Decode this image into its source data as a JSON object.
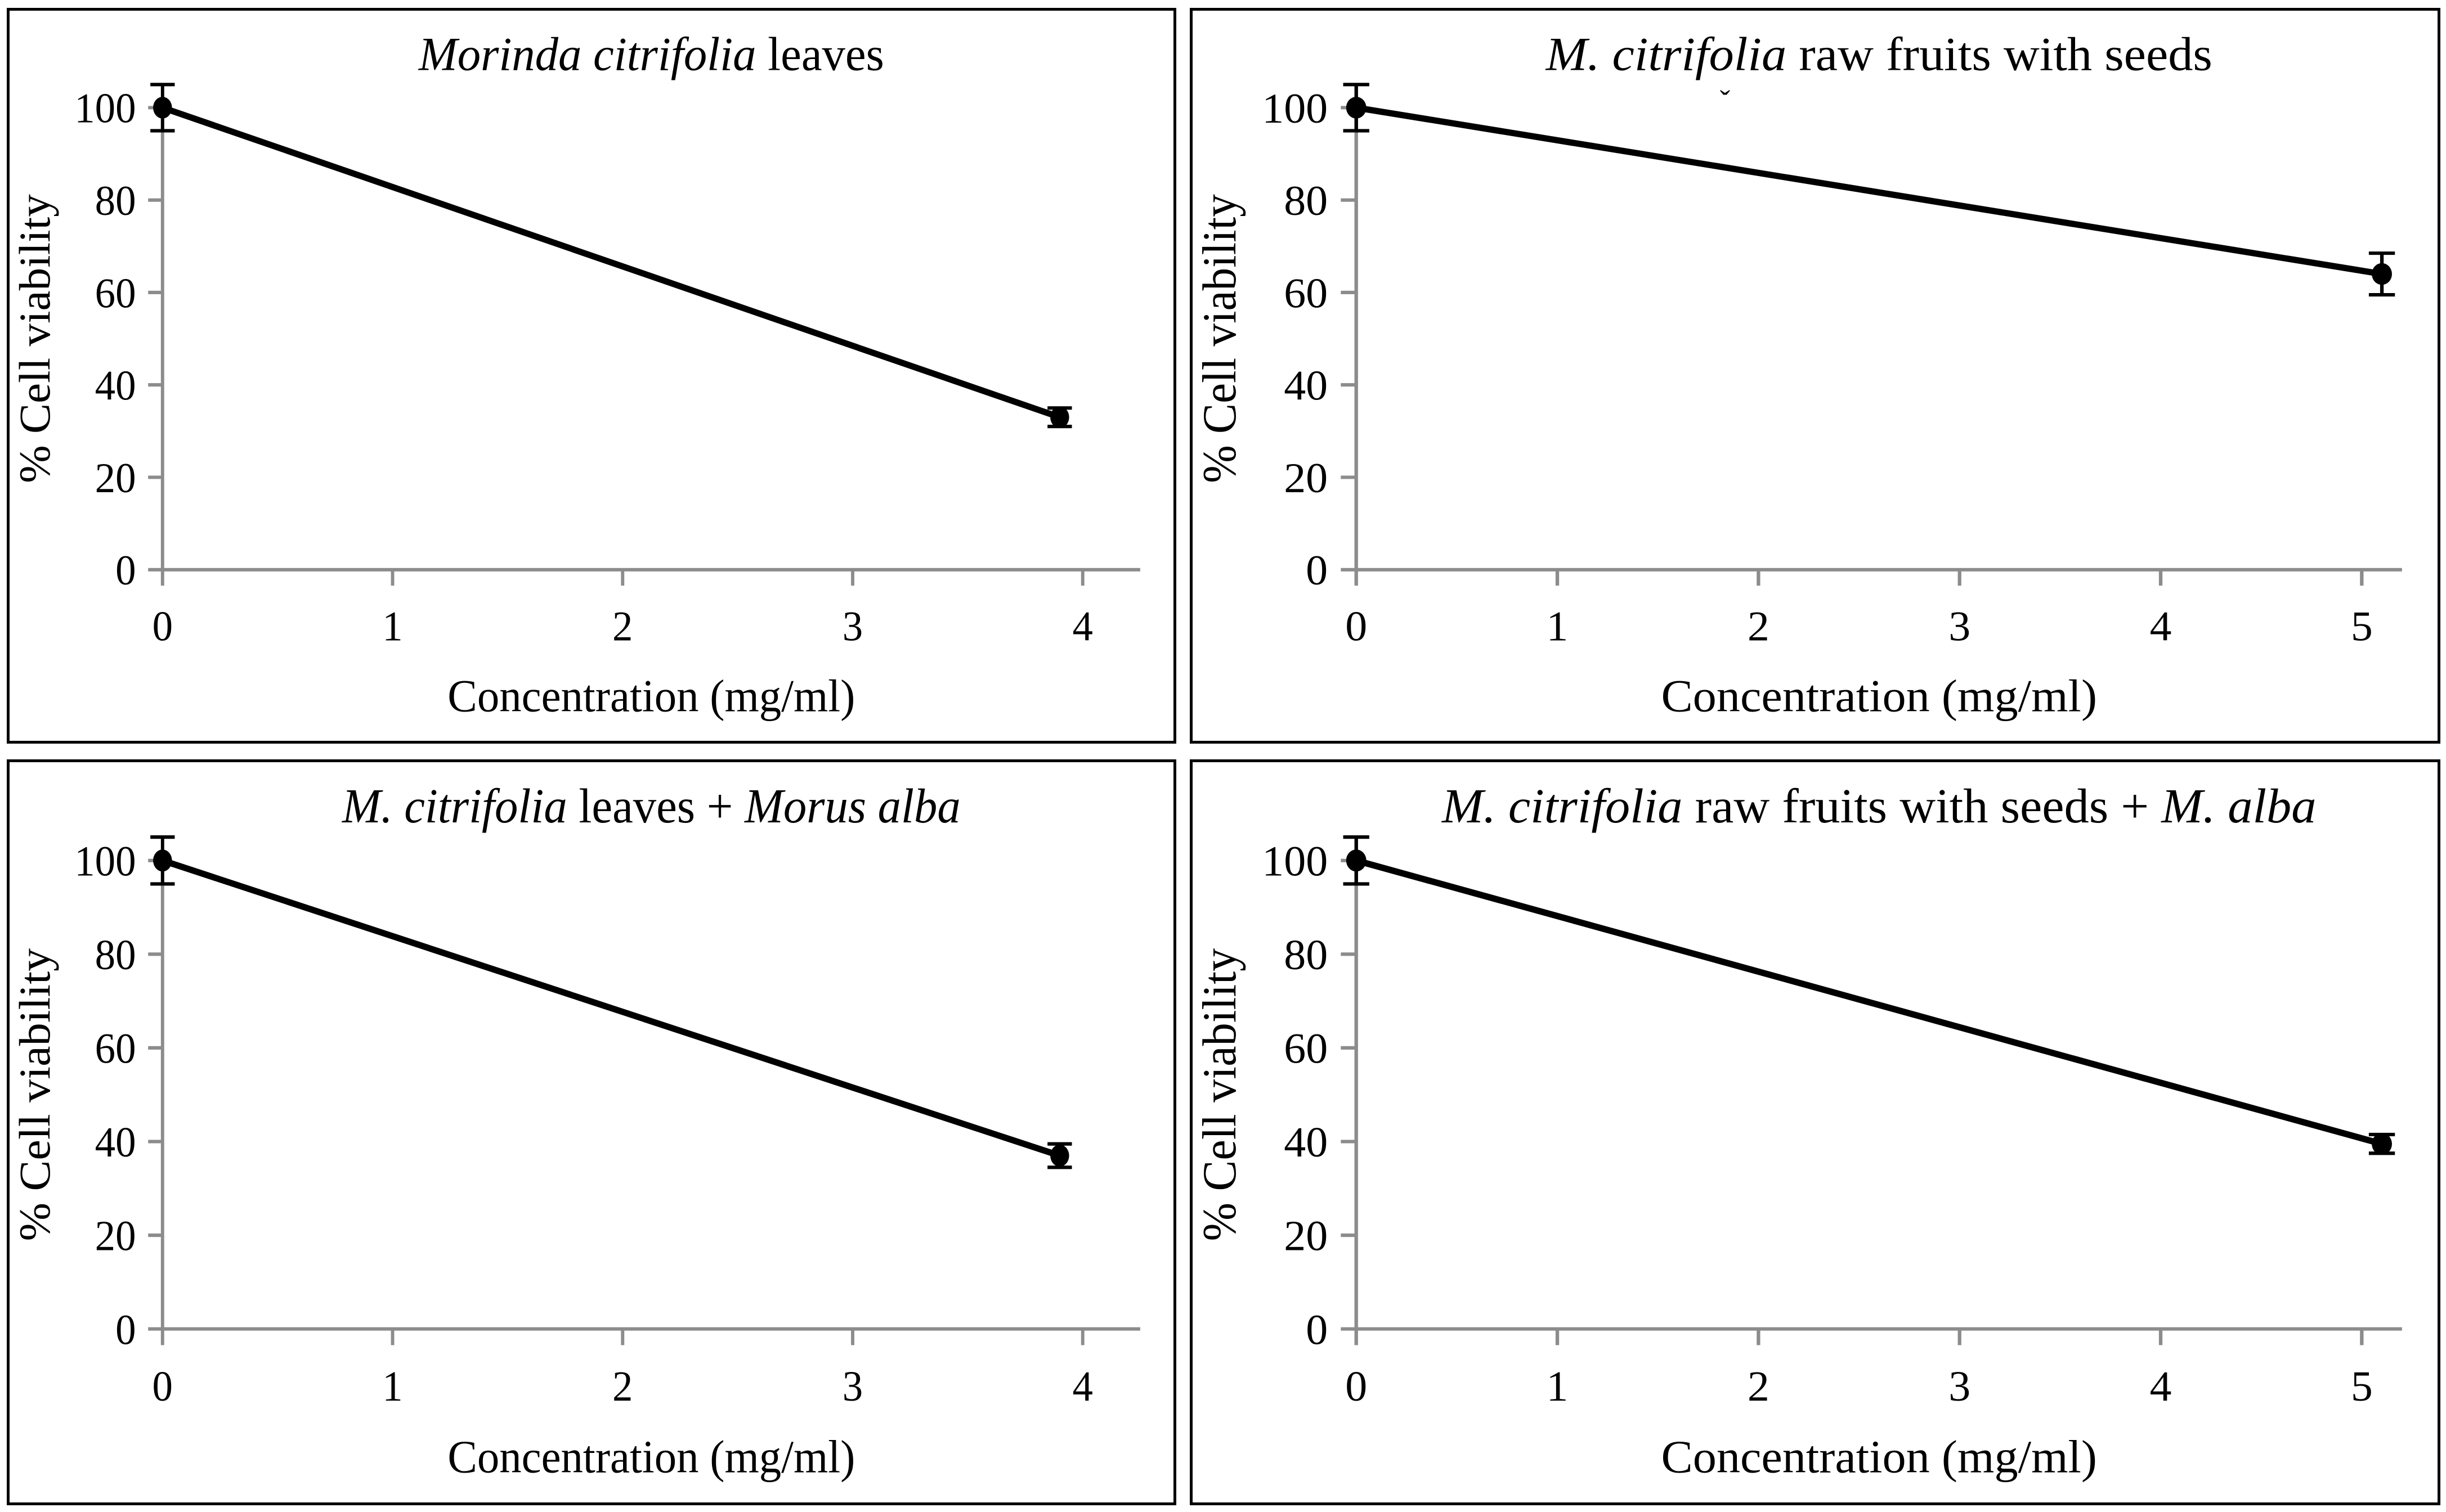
{
  "figure": {
    "background_color": "#ffffff",
    "panel_border_color": "#000000",
    "axis_color": "#8c8c8c",
    "line_color": "#000000",
    "marker_color": "#000000",
    "xlabel": "Concentration (mg/ml)",
    "ylabel": "% Cell viability",
    "legend": "none",
    "grid": false
  },
  "chart_data": [
    {
      "type": "line",
      "panel": "top-left",
      "title_plain": "Morinda citrifolia leaves",
      "title_segments": [
        {
          "text": "Morinda citrifolia",
          "italic": true
        },
        {
          "text": " leaves",
          "italic": false
        }
      ],
      "xlabel": "Concentration (mg/ml)",
      "ylabel": "% Cell viability",
      "x_ticks": [
        0,
        1,
        2,
        3,
        4
      ],
      "xlim": [
        0,
        4.25
      ],
      "y_ticks": [
        0,
        20,
        40,
        60,
        80,
        100
      ],
      "ylim": [
        0,
        100
      ],
      "series": [
        {
          "name": "% cell viability",
          "x": [
            0,
            3.9
          ],
          "y": [
            100,
            33
          ],
          "yerr": [
            5,
            2
          ]
        }
      ]
    },
    {
      "type": "line",
      "panel": "top-right",
      "title_plain": "M. citrifolia raw fruits with seeds",
      "title_segments": [
        {
          "text": "M. citrifolia",
          "italic": true
        },
        {
          "text": " raw fruits with seeds",
          "italic": false
        }
      ],
      "title_artifact_mark": "ˇ",
      "xlabel": "Concentration (mg/ml)",
      "ylabel": "% Cell viability",
      "x_ticks": [
        0,
        1,
        2,
        3,
        4,
        5
      ],
      "xlim": [
        0,
        5.2
      ],
      "y_ticks": [
        0,
        20,
        40,
        60,
        80,
        100
      ],
      "ylim": [
        0,
        100
      ],
      "series": [
        {
          "name": "% cell viability",
          "x": [
            0,
            5.1
          ],
          "y": [
            100,
            64
          ],
          "yerr": [
            5,
            4.5
          ]
        }
      ]
    },
    {
      "type": "line",
      "panel": "bottom-left",
      "title_plain": "M. citrifolia leaves + Morus alba",
      "title_segments": [
        {
          "text": "M. citrifolia",
          "italic": true
        },
        {
          "text": " leaves + ",
          "italic": false
        },
        {
          "text": "Morus alba",
          "italic": true
        }
      ],
      "xlabel": "Concentration (mg/ml)",
      "ylabel": "% Cell viability",
      "x_ticks": [
        0,
        1,
        2,
        3,
        4
      ],
      "xlim": [
        0,
        4.25
      ],
      "y_ticks": [
        0,
        20,
        40,
        60,
        80,
        100
      ],
      "ylim": [
        0,
        100
      ],
      "series": [
        {
          "name": "% cell viability",
          "x": [
            0,
            3.9
          ],
          "y": [
            100,
            37
          ],
          "yerr": [
            5,
            2.5
          ]
        }
      ]
    },
    {
      "type": "line",
      "panel": "bottom-right",
      "title_plain": "M. citrifolia raw fruits with seeds + M. alba",
      "title_segments": [
        {
          "text": "M. citrifolia",
          "italic": true
        },
        {
          "text": " raw fruits with seeds + ",
          "italic": false
        },
        {
          "text": "M. alba",
          "italic": true
        }
      ],
      "xlabel": "Concentration (mg/ml)",
      "ylabel": "% Cell viability",
      "x_ticks": [
        0,
        1,
        2,
        3,
        4,
        5
      ],
      "xlim": [
        0,
        5.2
      ],
      "y_ticks": [
        0,
        20,
        40,
        60,
        80,
        100
      ],
      "ylim": [
        0,
        100
      ],
      "series": [
        {
          "name": "% cell viability",
          "x": [
            0,
            5.1
          ],
          "y": [
            100,
            39.5
          ],
          "yerr": [
            5,
            2
          ]
        }
      ]
    }
  ]
}
